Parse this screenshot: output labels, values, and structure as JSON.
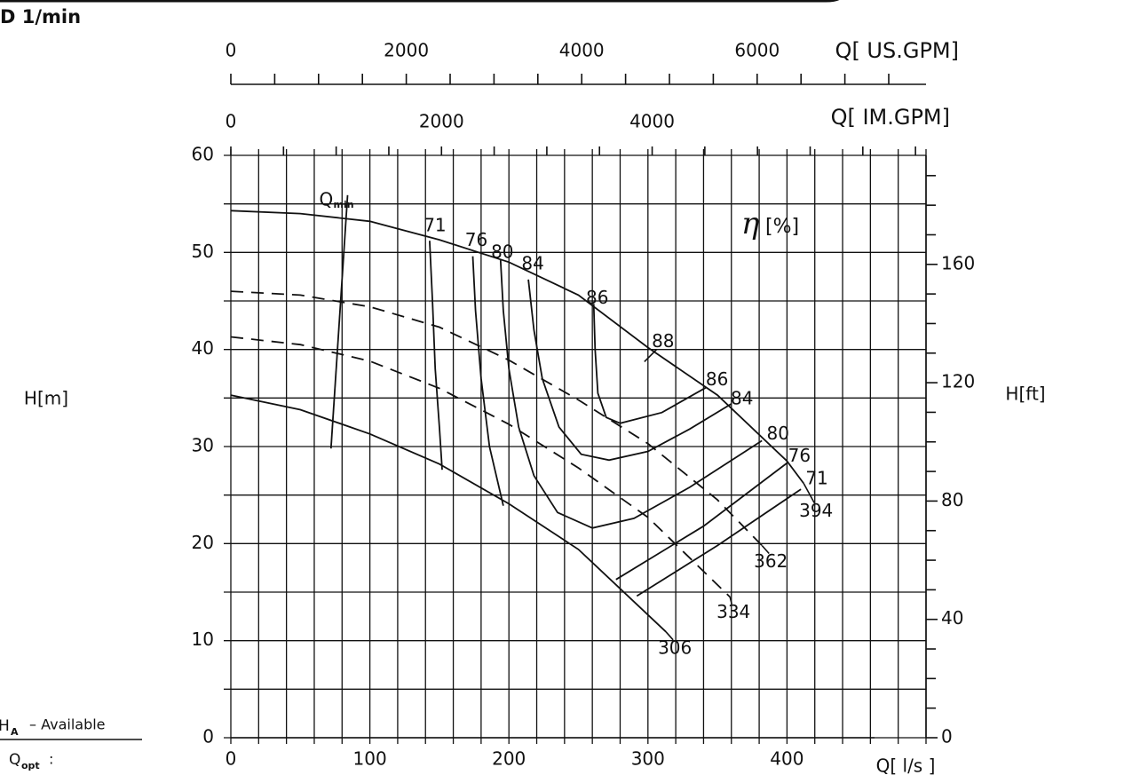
{
  "chart_data": {
    "type": "line",
    "title": "D   1/min",
    "xlabel": "Q[ l/s ]",
    "ylabel": "H[m]",
    "y2label": "H[ft]",
    "xlim": [
      0,
      500
    ],
    "xticks": [
      0,
      100,
      200,
      300,
      400
    ],
    "xgrid": [
      0,
      20,
      40,
      60,
      80,
      100,
      120,
      140,
      160,
      180,
      200,
      220,
      240,
      260,
      280,
      300,
      320,
      340,
      360,
      380,
      400,
      420,
      440,
      460,
      480,
      500
    ],
    "ylim": [
      0,
      60
    ],
    "yticks": [
      0,
      10,
      20,
      30,
      40,
      50,
      60
    ],
    "ygrid": [
      0,
      5,
      10,
      15,
      20,
      25,
      30,
      35,
      40,
      45,
      50,
      55,
      60
    ],
    "y2lim": [
      0,
      196.85
    ],
    "y2ticks": [
      0,
      40,
      80,
      120,
      160
    ],
    "y2minor": [
      10,
      20,
      30,
      50,
      60,
      70,
      90,
      100,
      110,
      130,
      140,
      150,
      170,
      180,
      190
    ],
    "top_axes": [
      {
        "label": "Q[ US.GPM]",
        "xlim": [
          0,
          7925
        ],
        "xticks": [
          0,
          2000,
          4000,
          6000
        ],
        "minor": [
          500,
          1000,
          1500,
          2500,
          3000,
          3500,
          4500,
          5000,
          5500,
          6500,
          7000,
          7500
        ]
      },
      {
        "label": "Q[ IM.GPM]",
        "xlim": [
          0,
          6600
        ],
        "xticks": [
          0,
          2000,
          4000
        ],
        "minor": [
          500,
          1000,
          1500,
          2500,
          3000,
          3500,
          4500,
          5000,
          5500,
          6000,
          6500
        ]
      }
    ],
    "eff_symbol": "η",
    "eff_unit": "[%]",
    "series": [
      {
        "name": "394",
        "dashed": false,
        "x": [
          0,
          50,
          100,
          150,
          200,
          250,
          300,
          350,
          400,
          412
        ],
        "values": [
          54.3,
          54.0,
          53.2,
          51.3,
          49.0,
          45.6,
          40.2,
          35.3,
          28.5,
          26.2
        ]
      },
      {
        "name": "362",
        "dashed": true,
        "x": [
          0,
          50,
          100,
          150,
          200,
          250,
          300,
          350,
          382
        ],
        "values": [
          46.0,
          45.6,
          44.4,
          42.3,
          38.9,
          34.8,
          30.3,
          24.5,
          19.8
        ]
      },
      {
        "name": "334",
        "dashed": true,
        "x": [
          0,
          50,
          100,
          150,
          200,
          250,
          300,
          359
        ],
        "values": [
          41.3,
          40.5,
          38.8,
          36.0,
          32.3,
          27.8,
          22.7,
          14.5
        ]
      },
      {
        "name": "306",
        "dashed": false,
        "x": [
          0,
          50,
          100,
          150,
          200,
          250,
          313
        ],
        "values": [
          35.3,
          33.8,
          31.3,
          28.2,
          24.1,
          19.4,
          10.9
        ]
      }
    ],
    "efficiency": [
      {
        "name": "71",
        "x": [
          143,
          145,
          147,
          150,
          152,
          null,
          292,
          350,
          410
        ],
        "values": [
          51.2,
          45,
          38,
          32,
          27.6,
          null,
          14.6,
          19.8,
          25.6
        ]
      },
      {
        "name": "76",
        "x": [
          174,
          176,
          180,
          186,
          196,
          null,
          277,
          340,
          400
        ],
        "values": [
          49.6,
          44,
          37,
          30,
          23.9,
          null,
          16.3,
          21.8,
          28.3
        ]
      },
      {
        "name": "80",
        "x": [
          194,
          196,
          200,
          207,
          218,
          235,
          260,
          290,
          330,
          382
        ],
        "values": [
          49.2,
          44,
          38,
          32,
          27,
          23.2,
          21.6,
          22.6,
          25.8,
          30.6
        ]
      },
      {
        "name": "84",
        "x": [
          214,
          218,
          224,
          236,
          252,
          272,
          300,
          330,
          360
        ],
        "values": [
          47.2,
          42,
          37,
          32,
          29.2,
          28.6,
          29.5,
          31.8,
          34.4
        ]
      },
      {
        "name": "86",
        "x": [
          261,
          262,
          264,
          270,
          280,
          310,
          342
        ],
        "values": [
          44.7,
          40,
          35.5,
          33,
          32.4,
          33.5,
          36.1
        ]
      },
      {
        "name": "88",
        "x": [
          300
        ],
        "values": [
          40.2
        ]
      }
    ],
    "qmin": {
      "label": "Q",
      "sub": "min",
      "x": [
        84,
        72
      ],
      "values": [
        55.9,
        29.8
      ]
    },
    "notes": [
      {
        "label": "H",
        "sub": "A",
        "text": "–  Available"
      },
      {
        "label": "Q",
        "sub": "opt",
        "text": ":"
      }
    ]
  }
}
